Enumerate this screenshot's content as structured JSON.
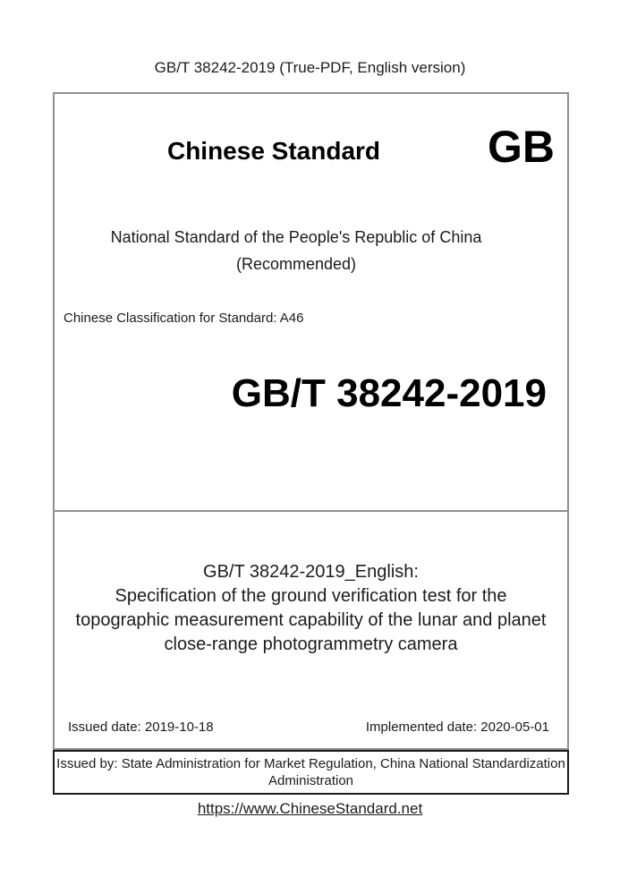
{
  "page": {
    "header_title": "GB/T 38242-2019 (True-PDF, English version)",
    "footer_link": "https://www.ChineseStandard.net"
  },
  "cover": {
    "brand_title": "Chinese Standard",
    "gb_logo": "GB",
    "national_standard_line": "National Standard of the People's Republic of China",
    "recommended_line": "(Recommended)",
    "classification_line": "Chinese Classification for Standard: A46",
    "standard_code": "GB/T 38242-2019"
  },
  "english_title": {
    "heading": "GB/T 38242-2019_English:",
    "lines": [
      "Specification of the ground verification test for the",
      "topographic measurement capability of the lunar and planet",
      "close-range photogrammetry camera"
    ]
  },
  "dates": {
    "issued": "Issued date: 2019-10-18",
    "implemented": "Implemented date: 2020-05-01"
  },
  "issuer": {
    "lines": [
      "Issued by: State Administration for Market Regulation, China National Standardization",
      "Administration"
    ]
  },
  "colors": {
    "box_border_gray": "#8f8f8f",
    "issuer_border_dark": "#1a1a1a",
    "text_color": "#1a1a1a"
  }
}
